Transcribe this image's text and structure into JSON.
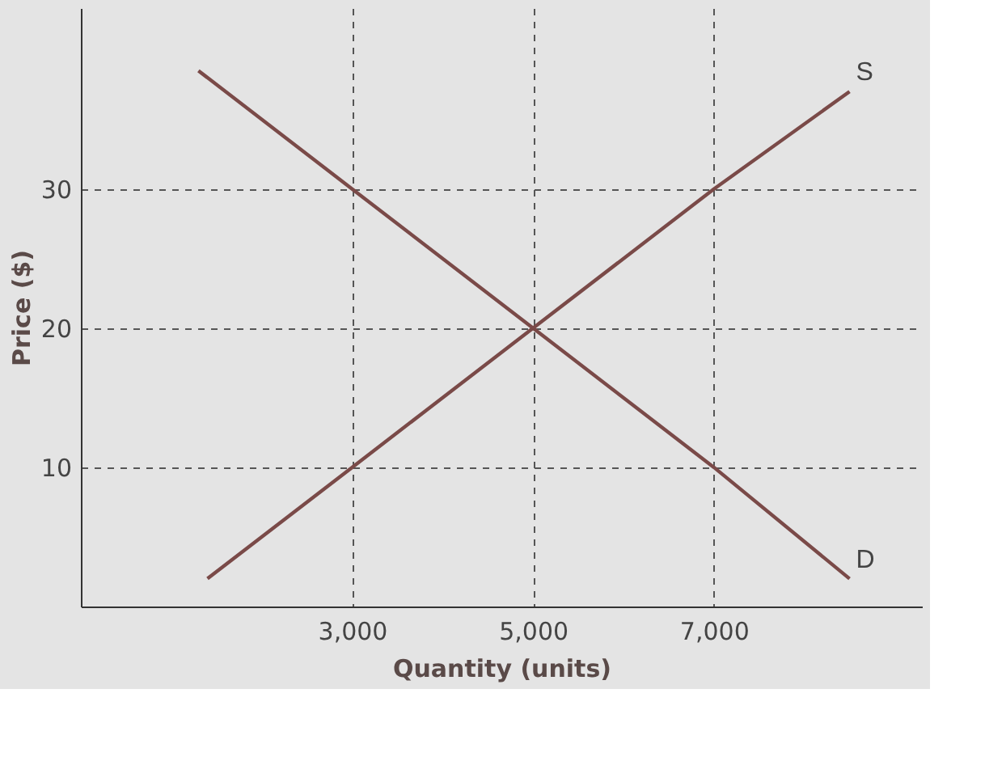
{
  "chart_data": {
    "type": "line",
    "xlabel": "Quantity (units)",
    "ylabel": "Price ($)",
    "xlim": [
      0,
      9300
    ],
    "ylim": [
      0,
      43
    ],
    "xticks": [
      {
        "value": 3000,
        "label": "3,000"
      },
      {
        "value": 5000,
        "label": "5,000"
      },
      {
        "value": 7000,
        "label": "7,000"
      }
    ],
    "yticks": [
      10,
      20,
      30
    ],
    "grid": true,
    "legend": false,
    "marker": "none",
    "line_style": "solid",
    "series": [
      {
        "name": "D",
        "color": "#7a4a48",
        "x": [
          1300,
          3000,
          5000,
          7000,
          8500
        ],
        "values": [
          38.5,
          30,
          20,
          10,
          2
        ]
      },
      {
        "name": "S",
        "color": "#7a4a48",
        "x": [
          1400,
          3000,
          5000,
          7000,
          8500
        ],
        "values": [
          2,
          10,
          20,
          30,
          37
        ]
      }
    ]
  }
}
